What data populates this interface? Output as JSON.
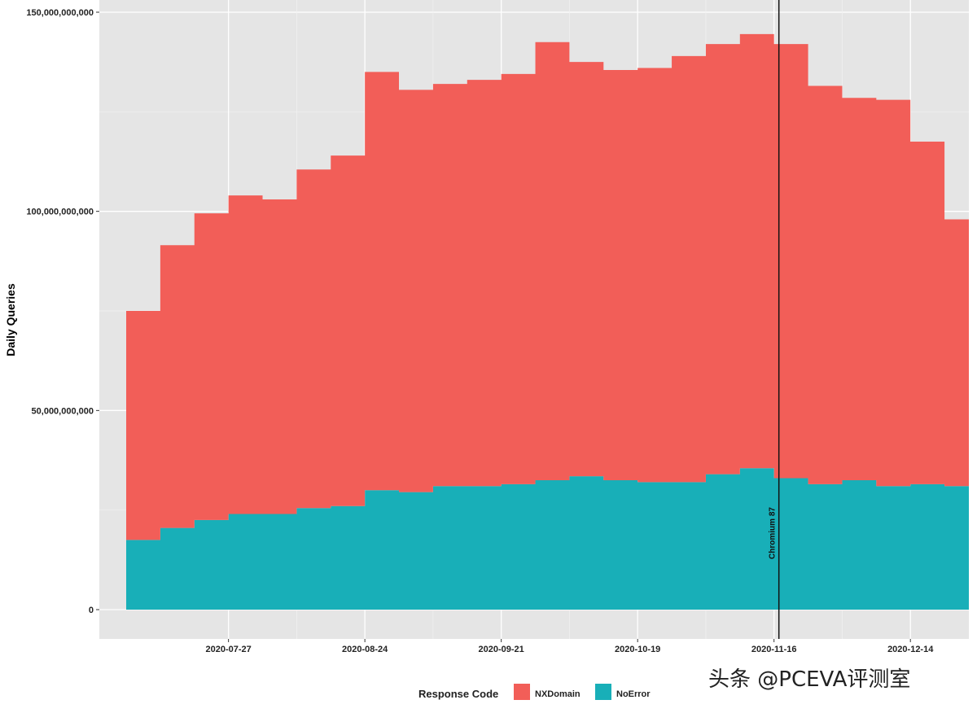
{
  "chart_data": {
    "type": "area",
    "stacked": true,
    "title": "",
    "xlabel": "",
    "ylabel": "Daily Queries",
    "x_range": [
      "2020-07-06",
      "2020-12-26"
    ],
    "ylim": [
      0,
      150000000000
    ],
    "y_ticks": [
      0,
      50000000000,
      100000000000,
      150000000000
    ],
    "y_tick_labels": [
      "0",
      "50,000,000,000",
      "100,000,000,000",
      "150,000,000,000"
    ],
    "x_ticks": [
      "2020-07-27",
      "2020-08-24",
      "2020-09-21",
      "2020-10-19",
      "2020-11-16",
      "2020-12-14"
    ],
    "x_tick_labels": [
      "2020-07-27",
      "2020-08-24",
      "2020-09-21",
      "2020-10-19",
      "2020-11-16",
      "2020-12-14"
    ],
    "grid": true,
    "background": "#e5e5e5",
    "legend": {
      "title": "Response Code",
      "position": "bottom",
      "entries": [
        {
          "label": "NXDomain",
          "color": "#f25e58"
        },
        {
          "label": "NoError",
          "color": "#18afb8"
        }
      ]
    },
    "annotations": [
      {
        "type": "vline",
        "x": "2020-11-17",
        "label": "Chromium 87"
      }
    ],
    "dates": [
      "2020-07-06",
      "2020-07-13",
      "2020-07-20",
      "2020-07-27",
      "2020-08-03",
      "2020-08-10",
      "2020-08-17",
      "2020-08-24",
      "2020-08-31",
      "2020-09-07",
      "2020-09-14",
      "2020-09-21",
      "2020-09-28",
      "2020-10-05",
      "2020-10-12",
      "2020-10-19",
      "2020-10-26",
      "2020-11-02",
      "2020-11-09",
      "2020-11-16",
      "2020-11-23",
      "2020-11-30",
      "2020-12-07",
      "2020-12-14",
      "2020-12-21",
      "2020-12-26"
    ],
    "series": [
      {
        "name": "NoError",
        "color": "#18afb8",
        "values": [
          17.5,
          20.5,
          22.5,
          24,
          24,
          25.5,
          26,
          30,
          29.5,
          31,
          31,
          31.5,
          32.5,
          33.5,
          32.5,
          32,
          32,
          34,
          35.5,
          33,
          31.5,
          32.5,
          31,
          31.5,
          31,
          31
        ]
      },
      {
        "name": "NXDomain",
        "color": "#f25e58",
        "values": [
          57.5,
          71,
          77,
          80,
          79,
          85,
          88,
          105,
          101,
          101,
          102,
          103,
          110,
          104,
          103,
          104,
          107,
          108,
          109,
          109,
          100,
          96,
          97,
          86,
          67,
          63
        ]
      }
    ],
    "units_note": "values in billions of queries per day",
    "totals": [
      75,
      91.5,
      99.5,
      104,
      103,
      110.5,
      114,
      135,
      130.5,
      132,
      133,
      134.5,
      142.5,
      137.5,
      135.5,
      136,
      139,
      142,
      144.5,
      142,
      131.5,
      128.5,
      128,
      117.5,
      98,
      94
    ]
  },
  "watermark": "头条 @PCEVA评测室"
}
